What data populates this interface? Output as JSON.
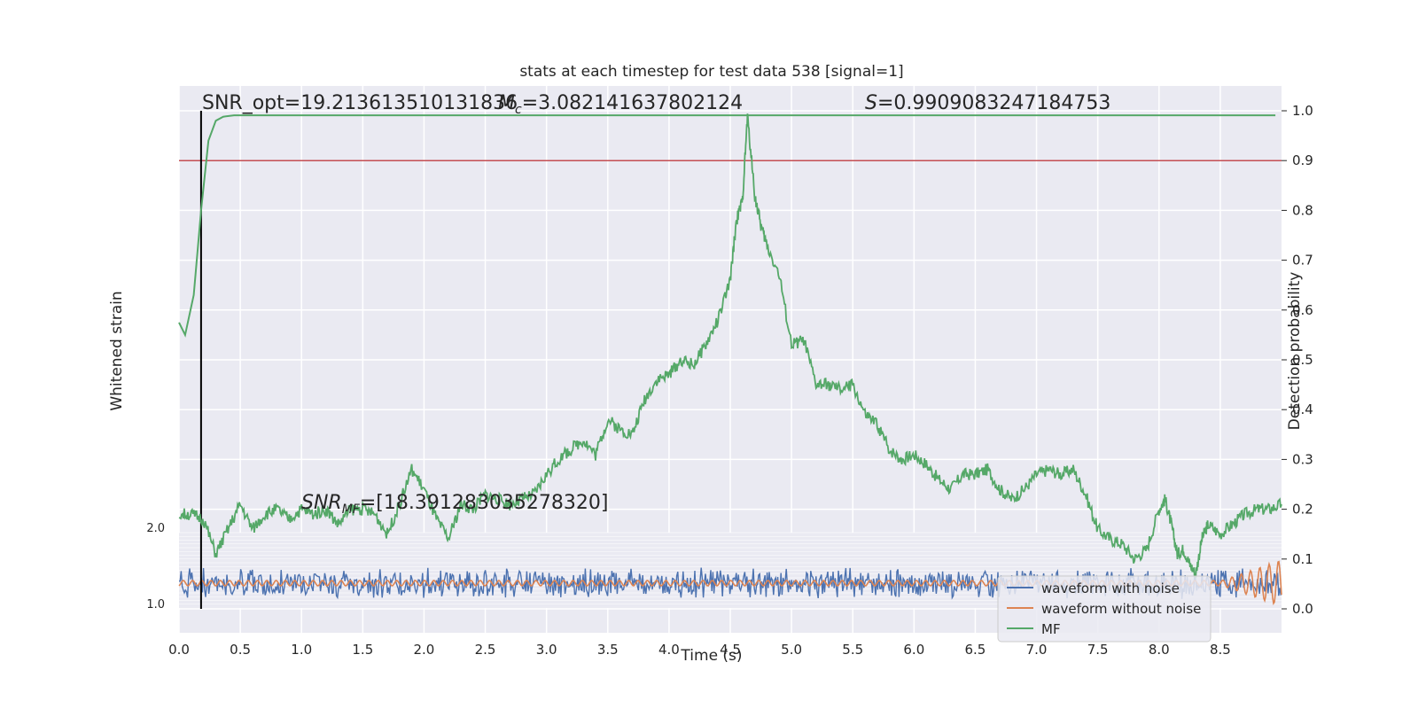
{
  "chart_data": {
    "type": "line",
    "title": "stats at each timestep for test data 538 [signal=1]",
    "xlabel": "Time (s)",
    "ylabel_left": "Whitened strain",
    "ylabel_right": "Detection probability",
    "xlim": [
      0.0,
      9.0
    ],
    "ylim_right": [
      0.0,
      1.0
    ],
    "x_ticks": [
      "0.0",
      "0.5",
      "1.0",
      "1.5",
      "2.0",
      "2.5",
      "3.0",
      "3.5",
      "4.0",
      "4.5",
      "5.0",
      "5.5",
      "6.0",
      "6.5",
      "7.0",
      "7.5",
      "8.0",
      "8.5"
    ],
    "y_ticks_right": [
      "0.0",
      "0.1",
      "0.2",
      "0.3",
      "0.4",
      "0.5",
      "0.6",
      "0.7",
      "0.8",
      "0.9",
      "1.0"
    ],
    "strain_ticks_top": "2.0",
    "strain_ticks_bottom": "1.0",
    "grid": true,
    "legend_position": "bottom-right",
    "legend": [
      "waveform with noise",
      "waveform without noise",
      "MF"
    ],
    "annotations": {
      "snr_opt": "SNR_opt=19.213613510131836",
      "mc_symbol": "M",
      "mc_sub": "c",
      "mc_value": "=3.082141637802124",
      "s_symbol": "S",
      "s_value": "=0.9909083247184753",
      "snr_mf_symbol": "SNR",
      "snr_mf_sub": "MF",
      "snr_mf_value": "=[18.391283035278320]"
    },
    "threshold": 0.9,
    "merger_time": 0.18,
    "series": [
      {
        "name": "MF",
        "color": "#55a868",
        "x": [
          0.0,
          0.05,
          0.12,
          0.18,
          0.24,
          0.3,
          0.36,
          0.45,
          0.6,
          1.0,
          2.0,
          3.0,
          4.0,
          5.0,
          6.0,
          7.0,
          8.0,
          8.95
        ],
        "y": [
          0.575,
          0.55,
          0.63,
          0.8,
          0.94,
          0.98,
          0.988,
          0.991,
          0.991,
          0.991,
          0.991,
          0.991,
          0.991,
          0.991,
          0.991,
          0.991,
          0.991,
          0.991
        ]
      },
      {
        "name": "Detection probability (green trace)",
        "color": "#55a868",
        "x": [
          0.0,
          0.1,
          0.2,
          0.3,
          0.4,
          0.5,
          0.6,
          0.7,
          0.8,
          0.9,
          1.0,
          1.1,
          1.2,
          1.3,
          1.4,
          1.5,
          1.6,
          1.7,
          1.8,
          1.9,
          2.0,
          2.1,
          2.2,
          2.3,
          2.4,
          2.5,
          2.6,
          2.7,
          2.8,
          2.9,
          3.0,
          3.1,
          3.2,
          3.3,
          3.4,
          3.5,
          3.6,
          3.7,
          3.8,
          3.9,
          4.0,
          4.1,
          4.2,
          4.3,
          4.4,
          4.5,
          4.55,
          4.6,
          4.64,
          4.7,
          4.75,
          4.8,
          4.9,
          5.0,
          5.1,
          5.2,
          5.3,
          5.4,
          5.5,
          5.6,
          5.7,
          5.8,
          5.9,
          6.0,
          6.1,
          6.2,
          6.3,
          6.4,
          6.5,
          6.6,
          6.7,
          6.8,
          6.9,
          7.0,
          7.1,
          7.2,
          7.3,
          7.4,
          7.5,
          7.6,
          7.7,
          7.8,
          7.9,
          8.0,
          8.05,
          8.1,
          8.15,
          8.2,
          8.25,
          8.3,
          8.35,
          8.4,
          8.5,
          8.6,
          8.7,
          8.8,
          8.9,
          9.0
        ],
        "y": [
          0.19,
          0.19,
          0.18,
          0.11,
          0.16,
          0.21,
          0.16,
          0.19,
          0.2,
          0.18,
          0.2,
          0.19,
          0.2,
          0.17,
          0.2,
          0.2,
          0.19,
          0.15,
          0.21,
          0.28,
          0.24,
          0.18,
          0.14,
          0.21,
          0.2,
          0.23,
          0.22,
          0.21,
          0.22,
          0.23,
          0.27,
          0.3,
          0.32,
          0.34,
          0.31,
          0.38,
          0.36,
          0.35,
          0.42,
          0.46,
          0.47,
          0.5,
          0.49,
          0.53,
          0.58,
          0.66,
          0.78,
          0.82,
          0.99,
          0.83,
          0.77,
          0.73,
          0.67,
          0.53,
          0.54,
          0.45,
          0.45,
          0.44,
          0.45,
          0.39,
          0.37,
          0.32,
          0.3,
          0.31,
          0.29,
          0.26,
          0.24,
          0.27,
          0.27,
          0.28,
          0.24,
          0.22,
          0.24,
          0.27,
          0.28,
          0.27,
          0.28,
          0.23,
          0.16,
          0.14,
          0.13,
          0.1,
          0.12,
          0.2,
          0.22,
          0.17,
          0.11,
          0.12,
          0.09,
          0.07,
          0.14,
          0.17,
          0.15,
          0.17,
          0.19,
          0.2,
          0.2,
          0.21
        ]
      }
    ]
  },
  "legend_color_noise": "#4c72b0",
  "legend_color_clean": "#dd8452",
  "legend_color_mf": "#55a868",
  "threshold_color": "#c44e52"
}
